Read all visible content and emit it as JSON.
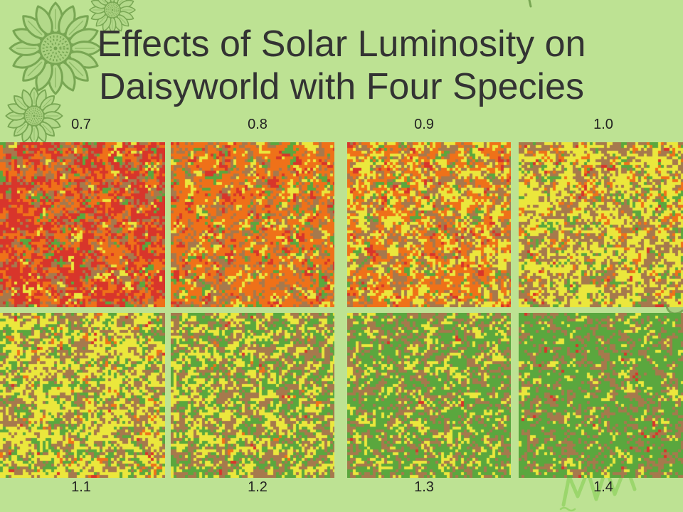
{
  "slide": {
    "title": {
      "line1": "Effects of Solar Luminosity on",
      "line2": "Daisyworld with Four Species"
    },
    "background_color": "#bde293",
    "title_color": "#333333",
    "label_color": "#222222"
  },
  "panels": {
    "top": [
      {
        "label": "0.7"
      },
      {
        "label": "0.8"
      },
      {
        "label": "0.9"
      },
      {
        "label": "1.0"
      }
    ],
    "bottom": [
      {
        "label": "1.1"
      },
      {
        "label": "1.2"
      },
      {
        "label": "1.3"
      },
      {
        "label": "1.4"
      }
    ]
  },
  "cell_colors": {
    "red": "#d8352b",
    "orange": "#ef7119",
    "yellow": "#ebe73c",
    "brown": "#a6794d",
    "green": "#5aa73e"
  },
  "decorations": {
    "top_left": [
      "sunflower-icon",
      "sunflower-icon",
      "sunflower-icon"
    ],
    "right": [
      "leaf-icon",
      "grass-icon"
    ]
  }
}
